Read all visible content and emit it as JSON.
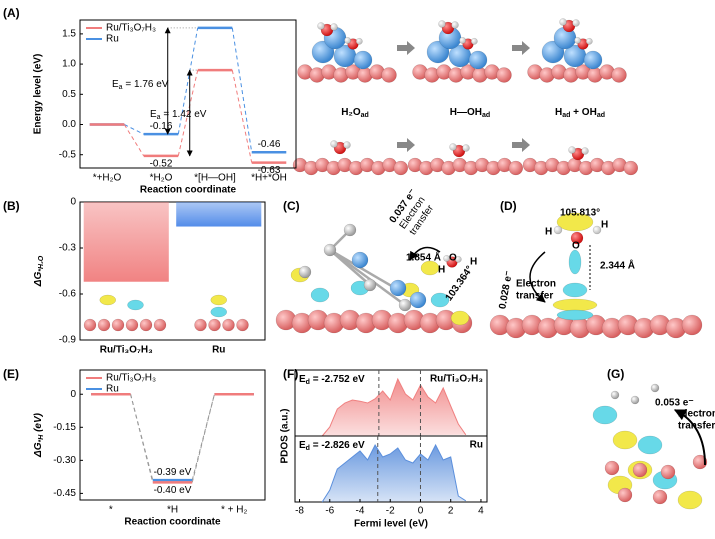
{
  "panels": {
    "A": "(A)",
    "B": "(B)",
    "C": "(C)",
    "D": "(D)",
    "E": "(E)",
    "F": "(F)",
    "G": "(G)"
  },
  "scheme_A": [
    [
      "H₂O",
      "ad"
    ],
    [
      "H—OH",
      "ad"
    ],
    [
      "H",
      "ad",
      " + OH",
      "ad"
    ]
  ],
  "structures": {
    "C": {
      "charge": "0.037 e⁻",
      "transfer": [
        "Electron",
        "transfer"
      ],
      "bond": "1.854 Å",
      "angle": "103.364°",
      "atoms": [
        "H",
        "O",
        "H"
      ]
    },
    "D": {
      "angle": "105.813°",
      "atoms": [
        "H",
        "O",
        "H"
      ],
      "charge": "0.028 e⁻",
      "transfer": [
        "Electron",
        "transfer"
      ],
      "bond": "2.344 Å"
    },
    "G": {
      "charge": "0.053 e⁻",
      "transfer": [
        "Electron",
        "transfer"
      ]
    }
  },
  "chart_data": [
    {
      "type": "levels",
      "categories": [
        "*+H₂O",
        "*H₂O",
        "*[H—OH]",
        "*H+*OH"
      ],
      "series": [
        {
          "name": "Ru/Ti₃O₇H₃",
          "color": "#f07c7c",
          "values": [
            0,
            -0.52,
            0.9,
            -0.63
          ],
          "value_labels": [
            null,
            "-0.52",
            null,
            "-0.63"
          ]
        },
        {
          "name": "Ru",
          "color": "#4a90e2",
          "values": [
            0,
            -0.16,
            1.6,
            -0.46
          ],
          "value_labels": [
            null,
            "-0.16",
            null,
            "-0.46"
          ]
        }
      ],
      "ylim": [
        -0.72,
        1.73
      ],
      "yticks": [
        -0.5,
        {
          "value": 0,
          "label": "0.0"
        },
        0.5,
        {
          "value": 1,
          "label": "1.0"
        },
        1.5
      ],
      "ylabel": "Energy level (eV)",
      "xlabel": "Reaction coordinate",
      "annotations": [
        [
          "E",
          "a",
          " = 1.76 eV"
        ],
        [
          "E",
          "a",
          " = 1.42 eV"
        ]
      ],
      "legend": "upper left"
    },
    {
      "type": "bar",
      "categories": [
        "Ru/Ti₃O₇H₃",
        "Ru"
      ],
      "values": [
        -0.52,
        -0.16
      ],
      "colors": [
        "#f07c7c",
        "#4a86e8"
      ],
      "ylim": [
        -0.9,
        0
      ],
      "yticks": [
        0,
        -0.3,
        -0.6,
        -0.9
      ],
      "ylabel": [
        "ΔG",
        "*H₂O"
      ]
    },
    {
      "type": "levels",
      "categories": [
        "*",
        "*H",
        "* + H₂"
      ],
      "series": [
        {
          "name": "Ru/Ti₃O₇H₃",
          "color": "#f07c7c",
          "values": [
            0,
            -0.4,
            0
          ],
          "value_labels": [
            null,
            "-0.40 eV",
            null
          ]
        },
        {
          "name": "Ru",
          "color": "#4a90e2",
          "values": [
            0,
            -0.39,
            0
          ],
          "value_labels": [
            null,
            "-0.39 eV",
            null
          ]
        }
      ],
      "ylim": [
        -0.48,
        0.11
      ],
      "yticks": [
        0,
        -0.15,
        {
          "value": -0.3,
          "label": "-0.30"
        },
        -0.45
      ],
      "ylabel": [
        "ΔG",
        "*H",
        " (eV)"
      ],
      "xlabel": "Reaction coordinate",
      "connector_color": "#999999",
      "legend": "upper left"
    },
    {
      "type": "area",
      "x": [
        -6.5,
        -6,
        -5.5,
        -5,
        -4.5,
        -4,
        -3.5,
        -3,
        -2.5,
        -2,
        -1.5,
        -1,
        -0.5,
        0,
        0.5,
        1,
        1.5,
        2,
        2.5,
        3
      ],
      "values": [
        0,
        0.15,
        0.45,
        0.55,
        0.6,
        0.58,
        0.55,
        0.62,
        0.75,
        0.6,
        0.95,
        0.7,
        0.6,
        0.85,
        0.65,
        0.55,
        0.8,
        0.5,
        0.2,
        0.02
      ],
      "color": "#f08080",
      "xlim": [
        -8.3,
        4.4
      ],
      "ylim": [
        0,
        1.1
      ],
      "ylabel": "PDOS (a.u.)",
      "label": "Ru/Ti₃O₇H₃",
      "d_band_center": -2.752,
      "d_band_label": [
        "E",
        "d",
        " = -2.752 eV"
      ],
      "fermi_level": 0
    },
    {
      "type": "area",
      "x": [
        -6.5,
        -6,
        -5.5,
        -5,
        -4.5,
        -4,
        -3.5,
        -3,
        -2.5,
        -2,
        -1.5,
        -1,
        -0.5,
        0,
        0.5,
        1,
        1.5,
        2,
        2.5,
        3
      ],
      "values": [
        0,
        0.2,
        0.55,
        0.65,
        0.75,
        0.85,
        0.7,
        0.95,
        0.75,
        0.8,
        0.9,
        0.7,
        0.65,
        0.8,
        0.7,
        0.95,
        0.7,
        0.75,
        0.1,
        0.02
      ],
      "color": "#5b8fdc",
      "xlim": [
        -8.3,
        4.4
      ],
      "ylim": [
        0,
        1.1
      ],
      "xticks": [
        -8,
        -6,
        -4,
        -2,
        0,
        2,
        4
      ],
      "xlabel": "Fermi level (eV)",
      "label": "Ru",
      "d_band_center": -2.826,
      "d_band_label": [
        "E",
        "d",
        " = -2.826 eV"
      ],
      "fermi_level": 0
    }
  ]
}
